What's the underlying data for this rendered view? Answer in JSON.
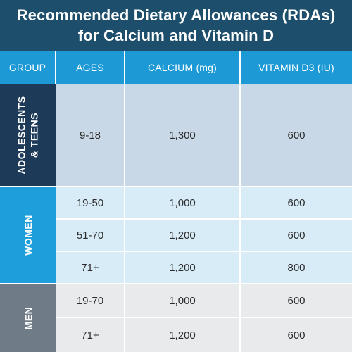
{
  "title": {
    "line1": "Recommended Dietary Allowances (RDAs)",
    "line2": "for Calcium and Vitamin D"
  },
  "headers": [
    "GROUP",
    "AGES",
    "CALCIUM (mg)",
    "VITAMIN D3 (IU)"
  ],
  "groups": {
    "teens": {
      "line1": "ADOLESCENTS",
      "line2": "& TEENS"
    },
    "women": "WOMEN",
    "men": "MEN"
  },
  "rows": [
    {
      "ages": "9-18",
      "calcium": "1,300",
      "vitamin_d3": "600"
    },
    {
      "ages": "19-50",
      "calcium": "1,000",
      "vitamin_d3": "600"
    },
    {
      "ages": "51-70",
      "calcium": "1,200",
      "vitamin_d3": "600"
    },
    {
      "ages": "71+",
      "calcium": "1,200",
      "vitamin_d3": "800"
    },
    {
      "ages": "19-70",
      "calcium": "1,000",
      "vitamin_d3": "600"
    },
    {
      "ages": "71+",
      "calcium": "1,200",
      "vitamin_d3": "600"
    }
  ],
  "colors": {
    "title_bg": "#1d4e6b",
    "header_bg": "#1d9ad6",
    "teens_group": "#1d3a58",
    "women_group": "#1e9fdc",
    "men_group": "#6f7c87",
    "teens_row": "#c9d8e6",
    "women_row": "#d8ecf8",
    "men_row": "#e8eaec"
  }
}
